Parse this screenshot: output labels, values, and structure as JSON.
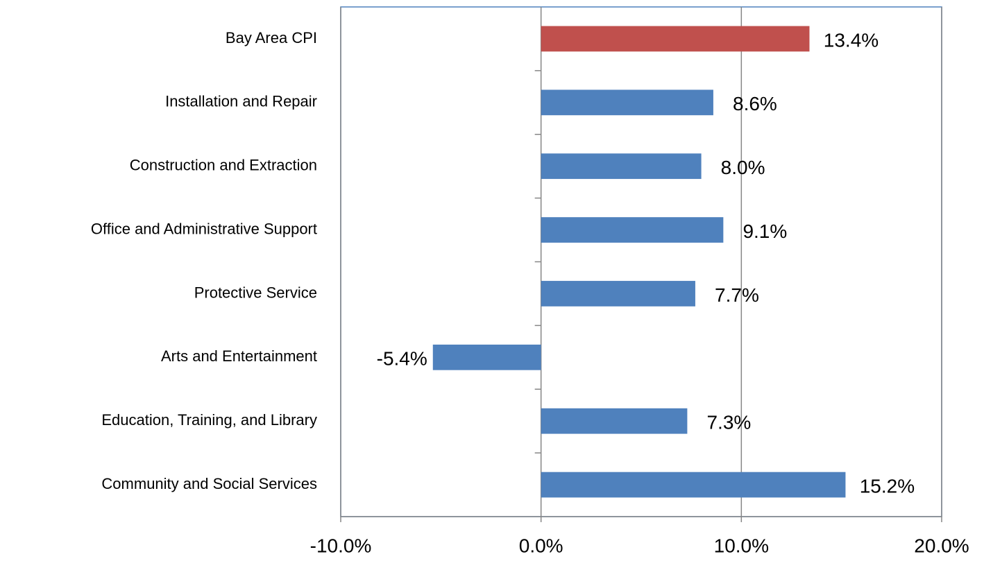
{
  "chart_data": {
    "type": "hbar",
    "categories": [
      "Bay Area CPI",
      "Installation and Repair",
      "Construction and Extraction",
      "Office and Administrative Support",
      "Protective Service",
      "Arts and Entertainment",
      "Education, Training, and Library",
      "Community and Social Services"
    ],
    "values": [
      13.4,
      8.6,
      8.0,
      9.1,
      7.7,
      -5.4,
      7.3,
      15.2
    ],
    "value_labels": [
      "13.4%",
      "8.6%",
      "8.0%",
      "9.1%",
      "7.7%",
      "-5.4%",
      "7.3%",
      "15.2%"
    ],
    "colors": [
      "#c0504d",
      "#4f81bd",
      "#4f81bd",
      "#4f81bd",
      "#4f81bd",
      "#4f81bd",
      "#4f81bd",
      "#4f81bd"
    ],
    "xlim": [
      -10,
      20
    ],
    "xticks": [
      {
        "value": -10,
        "label": "-10.0%"
      },
      {
        "value": 0,
        "label": "0.0%"
      },
      {
        "value": 10,
        "label": "10.0%"
      },
      {
        "value": 20,
        "label": "20.0%"
      }
    ],
    "grid": true
  }
}
